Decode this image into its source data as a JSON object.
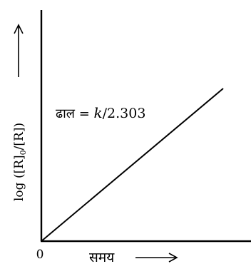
{
  "chart_data": {
    "type": "line",
    "xlabel": "समय",
    "ylabel_main": "log ([R]",
    "ylabel_sub": "0",
    "ylabel_rest": "/[R])",
    "origin_label": "0",
    "annotation": {
      "prefix": "ढाल = ",
      "symbol": "k",
      "suffix": "/2.303"
    },
    "series": [
      {
        "x": [
          0,
          1
        ],
        "y": [
          0,
          1
        ]
      }
    ],
    "grid": false,
    "legend": "none",
    "colors": {
      "line": "#000000",
      "axis": "#000000",
      "text": "#000000"
    }
  }
}
